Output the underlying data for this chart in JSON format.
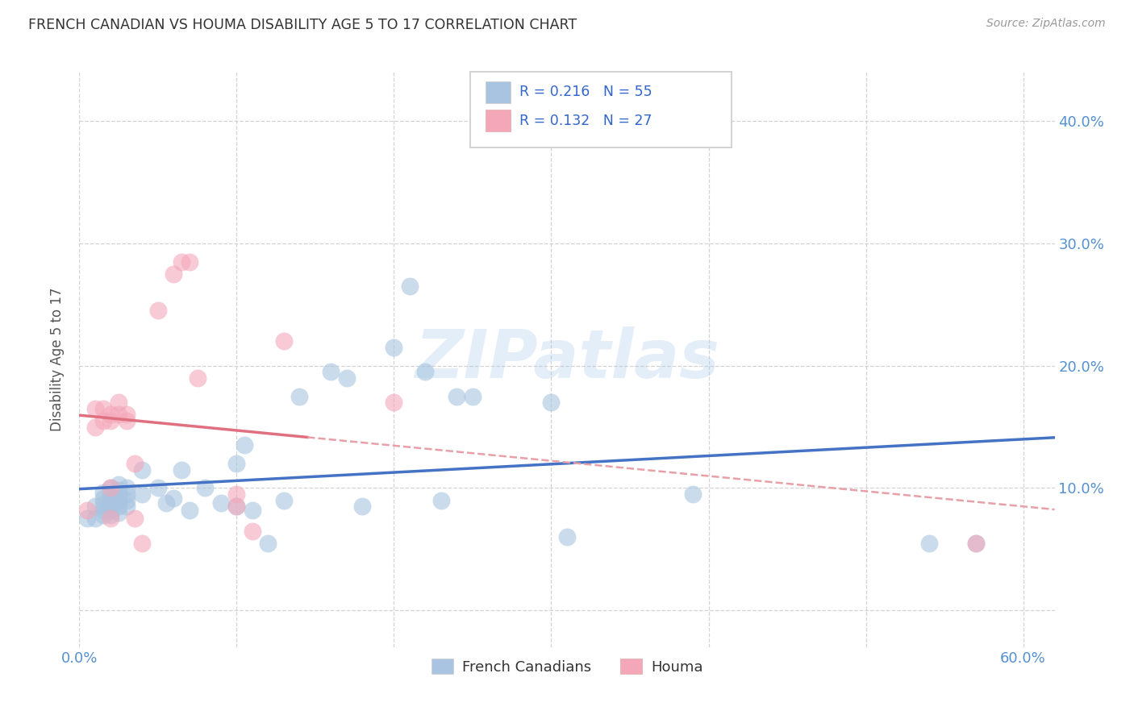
{
  "title": "FRENCH CANADIAN VS HOUMA DISABILITY AGE 5 TO 17 CORRELATION CHART",
  "source": "Source: ZipAtlas.com",
  "ylabel": "Disability Age 5 to 17",
  "xlim": [
    0.0,
    0.62
  ],
  "ylim": [
    -0.03,
    0.44
  ],
  "french_R": 0.216,
  "french_N": 55,
  "houma_R": 0.132,
  "houma_N": 27,
  "legend1_label": "French Canadians",
  "legend2_label": "Houma",
  "french_color": "#a8c4e0",
  "houma_color": "#f4a7b9",
  "french_line_color": "#4472c4",
  "houma_line_color": "#e07080",
  "houma_dash_color": "#e8a0a8",
  "background_color": "#ffffff",
  "grid_color": "#c8c8c8",
  "watermark": "ZIPatlas",
  "french_x": [
    0.005,
    0.01,
    0.01,
    0.015,
    0.015,
    0.015,
    0.015,
    0.015,
    0.02,
    0.02,
    0.02,
    0.02,
    0.02,
    0.02,
    0.025,
    0.025,
    0.025,
    0.025,
    0.025,
    0.025,
    0.025,
    0.03,
    0.03,
    0.03,
    0.03,
    0.04,
    0.04,
    0.05,
    0.055,
    0.06,
    0.065,
    0.07,
    0.08,
    0.09,
    0.1,
    0.1,
    0.105,
    0.11,
    0.12,
    0.13,
    0.14,
    0.16,
    0.17,
    0.18,
    0.2,
    0.21,
    0.22,
    0.23,
    0.24,
    0.25,
    0.3,
    0.31,
    0.39,
    0.54,
    0.57
  ],
  "french_y": [
    0.075,
    0.075,
    0.085,
    0.078,
    0.082,
    0.087,
    0.092,
    0.096,
    0.078,
    0.082,
    0.086,
    0.09,
    0.095,
    0.1,
    0.08,
    0.085,
    0.09,
    0.092,
    0.095,
    0.098,
    0.103,
    0.085,
    0.09,
    0.095,
    0.1,
    0.095,
    0.115,
    0.1,
    0.088,
    0.092,
    0.115,
    0.082,
    0.1,
    0.088,
    0.12,
    0.085,
    0.135,
    0.082,
    0.055,
    0.09,
    0.175,
    0.195,
    0.19,
    0.085,
    0.215,
    0.265,
    0.195,
    0.09,
    0.175,
    0.175,
    0.17,
    0.06,
    0.095,
    0.055,
    0.055
  ],
  "houma_x": [
    0.005,
    0.01,
    0.01,
    0.015,
    0.015,
    0.02,
    0.02,
    0.02,
    0.02,
    0.025,
    0.025,
    0.03,
    0.03,
    0.035,
    0.035,
    0.04,
    0.05,
    0.06,
    0.065,
    0.07,
    0.075,
    0.1,
    0.1,
    0.11,
    0.13,
    0.2,
    0.57
  ],
  "houma_y": [
    0.082,
    0.15,
    0.165,
    0.155,
    0.165,
    0.155,
    0.16,
    0.1,
    0.075,
    0.16,
    0.17,
    0.155,
    0.16,
    0.12,
    0.075,
    0.055,
    0.245,
    0.275,
    0.285,
    0.285,
    0.19,
    0.095,
    0.085,
    0.065,
    0.22,
    0.17,
    0.055
  ]
}
